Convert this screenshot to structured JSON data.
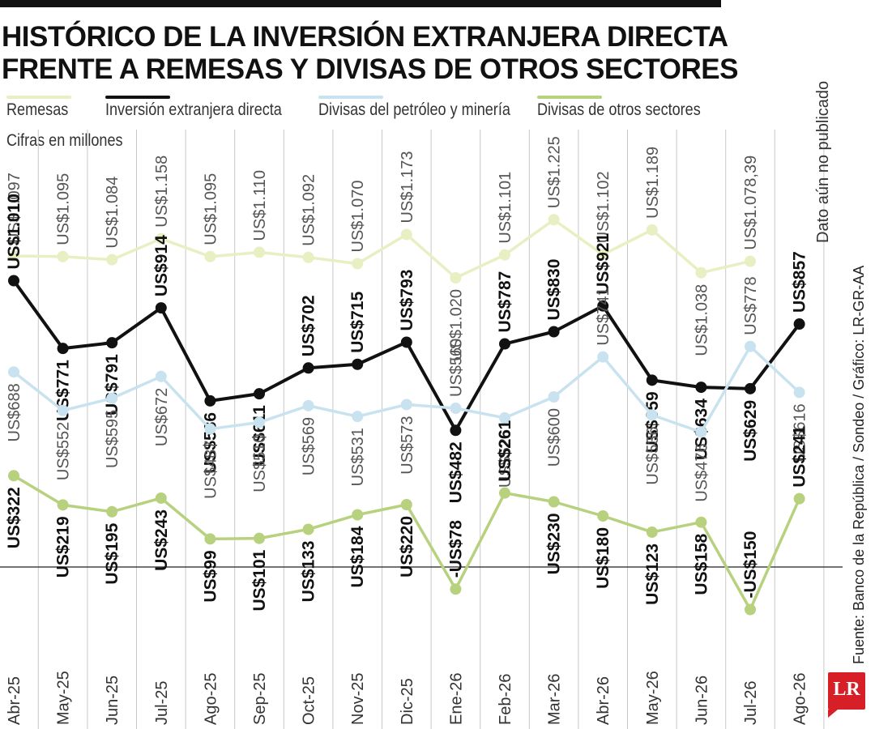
{
  "header": {
    "title_line1": "HISTÓRICO DE LA INVERSIÓN EXTRANJERA DIRECTA",
    "title_line2": "FRENTE A REMESAS Y DIVISAS DE OTROS SECTORES"
  },
  "legend": [
    {
      "label": "Remesas",
      "color": "#e7efc3"
    },
    {
      "label": "Inversión extranjera directa",
      "color": "#111111"
    },
    {
      "label": "Divisas del petróleo y minería",
      "color": "#c9e2f0"
    },
    {
      "label": "Divisas de otros sectores",
      "color": "#b7d17e"
    }
  ],
  "units_label": "Cifras en millones",
  "status_note": "Dato aún no publicado",
  "source_note": "Fuente: Banco de la República / Sondeo / Gráfico: LR-GR-AA",
  "logo_text": "LR",
  "chart_data": {
    "type": "line",
    "title": "HISTÓRICO DE LA INVERSIÓN EXTRANJERA DIRECTA FRENTE A REMESAS Y DIVISAS DE OTROS SECTORES",
    "categories": [
      "Abr-25",
      "May-25",
      "Jun-25",
      "Jul-25",
      "Ago-25",
      "Sep-25",
      "Oct-25",
      "Nov-25",
      "Dic-25",
      "Ene-26",
      "Feb-26",
      "Mar-26",
      "Abr-26",
      "May-26",
      "Jun-26",
      "Jul-26",
      "Ago-26"
    ],
    "legend_position": "top",
    "grid": "vertical",
    "series": [
      {
        "name": "Remesas",
        "color": "#e7efc3",
        "values": [
          1097,
          1095,
          1084,
          1158,
          1095,
          1110,
          1092,
          1070,
          1173,
          1020,
          1101,
          1225,
          1102,
          1189,
          1038,
          1078.39,
          null
        ],
        "labels": [
          "US$1.097",
          "US$1.095",
          "US$1.084",
          "US$1.158",
          "US$1.095",
          "US$1.110",
          "US$1.092",
          "US$1.070",
          "US$1.173",
          "US$1.020",
          "US$1.101",
          "US$1.225",
          "US$1.102",
          "US$1.189",
          "US$1.038",
          "US$1.078,39",
          ""
        ]
      },
      {
        "name": "Inversión extranjera directa",
        "color": "#111111",
        "values": [
          1010,
          771,
          791,
          914,
          586,
          611,
          702,
          715,
          793,
          482,
          787,
          830,
          921,
          659,
          634,
          629,
          857
        ],
        "labels": [
          "US$1.010",
          "US$771",
          "US$791",
          "US$914",
          "US$586",
          "US$611",
          "US$702",
          "US$715",
          "US$793",
          "US$482",
          "US$787",
          "US$830",
          "US$921",
          "US$659",
          "US$634",
          "US$629",
          "US$857"
        ]
      },
      {
        "name": "Divisas del petróleo y minería",
        "color": "#c9e2f0",
        "values": [
          688,
          552,
          595,
          672,
          487,
          510,
          569,
          531,
          573,
          560,
          526,
          600,
          741,
          536,
          476,
          778,
          616
        ],
        "labels": [
          "US$688",
          "US$552",
          "US$595",
          "US$672",
          "US$487",
          "US$510",
          "US$569",
          "US$531",
          "US$573",
          "US$560",
          "US$526",
          "US$600",
          "US$741",
          "US$536",
          "US$476",
          "US$778",
          "US$616"
        ]
      },
      {
        "name": "Divisas de otros sectores",
        "color": "#b7d17e",
        "values": [
          322,
          219,
          195,
          243,
          99,
          101,
          133,
          184,
          220,
          -78,
          261,
          230,
          180,
          123,
          158,
          -150,
          241
        ],
        "labels": [
          "US$322",
          "US$219",
          "US$195",
          "US$243",
          "US$99",
          "US$101",
          "US$133",
          "US$184",
          "US$220",
          "-US$78",
          "US$261",
          "US$230",
          "US$180",
          "US$123",
          "US$158",
          "-US$150",
          "US$241"
        ]
      }
    ]
  }
}
